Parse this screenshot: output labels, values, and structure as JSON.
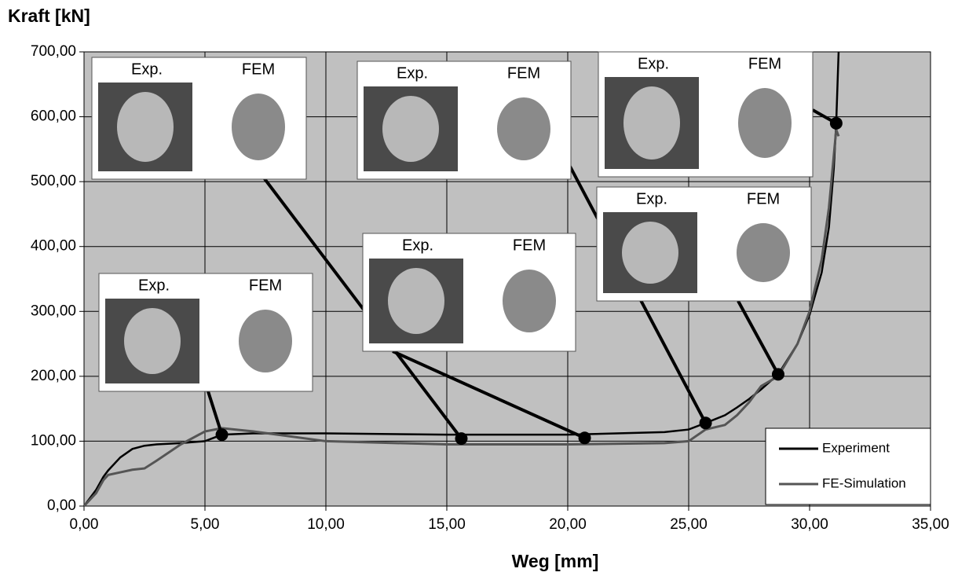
{
  "chart_data": {
    "type": "line",
    "y_axis_label": "Kraft [kN]",
    "x_axis_label": "Weg [mm]",
    "xlim": [
      0,
      35
    ],
    "ylim": [
      0,
      700
    ],
    "xticks": [
      {
        "value": 0,
        "label": "0,00"
      },
      {
        "value": 5,
        "label": "5,00"
      },
      {
        "value": 10,
        "label": "10,00"
      },
      {
        "value": 15,
        "label": "15,00"
      },
      {
        "value": 20,
        "label": "20,00"
      },
      {
        "value": 25,
        "label": "25,00"
      },
      {
        "value": 30,
        "label": "30,00"
      },
      {
        "value": 35,
        "label": "35,00"
      }
    ],
    "yticks": [
      {
        "value": 0,
        "label": "0,00"
      },
      {
        "value": 100,
        "label": "100,00"
      },
      {
        "value": 200,
        "label": "200,00"
      },
      {
        "value": 300,
        "label": "300,00"
      },
      {
        "value": 400,
        "label": "400,00"
      },
      {
        "value": 500,
        "label": "500,00"
      },
      {
        "value": 600,
        "label": "600,00"
      },
      {
        "value": 700,
        "label": "700,00"
      }
    ],
    "grid": true,
    "legend_position": "lower right",
    "background": "#c0c0c0",
    "x": [
      0,
      0.5,
      0.8,
      1,
      1.5,
      2,
      2.5,
      3,
      4,
      5,
      5.7,
      7,
      10,
      15,
      20,
      24,
      25,
      25.7,
      26.5,
      27,
      27.5,
      28,
      28.7,
      29.5,
      30,
      30.5,
      30.8,
      31,
      31.1,
      31.2
    ],
    "series": [
      {
        "name": "Experiment",
        "color": "#000000",
        "values": [
          0,
          25,
          45,
          55,
          75,
          88,
          93,
          95,
          97,
          100,
          110,
          112,
          112,
          110,
          110,
          114,
          118,
          128,
          140,
          152,
          165,
          180,
          203,
          250,
          295,
          360,
          430,
          520,
          590,
          700
        ]
      },
      {
        "name": "FE-Simulation",
        "color": "#555555",
        "values": [
          0,
          20,
          40,
          48,
          52,
          56,
          58,
          70,
          95,
          115,
          120,
          115,
          100,
          95,
          95,
          97,
          100,
          118,
          125,
          140,
          160,
          185,
          200,
          250,
          300,
          380,
          460,
          540,
          580,
          570
        ]
      }
    ],
    "insets": [
      {
        "x": 5.7,
        "y": 110,
        "labels": [
          "Exp.",
          "FEM"
        ]
      },
      {
        "x": 15.6,
        "y": 104,
        "labels": [
          "Exp.",
          "FEM"
        ]
      },
      {
        "x": 20.7,
        "y": 105,
        "labels": [
          "Exp.",
          "FEM"
        ]
      },
      {
        "x": 25.7,
        "y": 128,
        "labels": [
          "Exp.",
          "FEM"
        ]
      },
      {
        "x": 28.7,
        "y": 203,
        "labels": [
          "Exp.",
          "FEM"
        ]
      },
      {
        "x": 31.1,
        "y": 590,
        "labels": [
          "Exp.",
          "FEM"
        ]
      }
    ]
  }
}
